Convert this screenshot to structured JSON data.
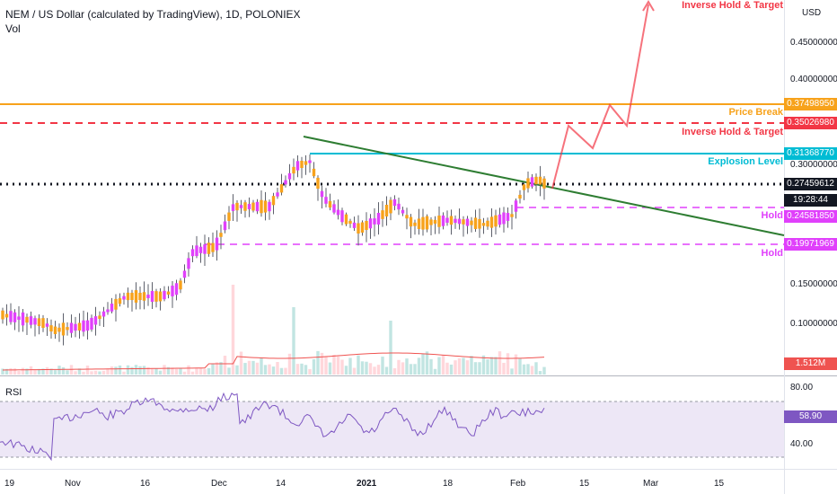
{
  "header": {
    "title": "NEM / US Dollar (calculated by TradingView), 1D, POLONIEX",
    "volume_label": "Vol",
    "currency": "USD"
  },
  "annotations": {
    "inverse_hold_target_top": "Inverse Hold & Target",
    "price_break": "Price Break",
    "inverse_hold_target": "Inverse Hold & Target",
    "explosion_level": "Explosion Level",
    "hold_upper": "Hold",
    "hold_lower": "Hold"
  },
  "price_tags": {
    "price_break": {
      "value": "0.37498950",
      "color": "#f7a21b"
    },
    "inverse_hold": {
      "value": "0.35026980",
      "color": "#f23645"
    },
    "explosion": {
      "value": "0.31368770",
      "color": "#00bcd4"
    },
    "current": {
      "value": "0.27459612",
      "color": "#131722"
    },
    "countdown": {
      "value": "19:28:44",
      "color": "#131722"
    },
    "hold_upper": {
      "value": "0.24581850",
      "color": "#e040fb"
    },
    "hold_lower": {
      "value": "0.19971969",
      "color": "#e040fb"
    },
    "volume": {
      "value": "1.512M",
      "color": "#ef5350"
    }
  },
  "price_axis": [
    "0.45000000",
    "0.40000000",
    "0.30000000",
    "0.15000000",
    "0.10000000"
  ],
  "rsi": {
    "label": "RSI",
    "value": "58.90",
    "axis": [
      "80.00",
      "40.00"
    ],
    "color": "#7e57c2"
  },
  "date_axis": [
    "19",
    "Nov",
    "16",
    "Dec",
    "14",
    "2021",
    "18",
    "Feb",
    "15",
    "Mar",
    "15"
  ],
  "colors": {
    "up": "#f7a21b",
    "down": "#e040fb",
    "trend": "#2e7d32",
    "projection": "#f23645",
    "bg": "#ffffff"
  },
  "chart_data": {
    "type": "candlestick",
    "title": "NEM / US Dollar (calculated by TradingView), 1D, POLONIEX",
    "y_scale": "log",
    "ylim": [
      0.065,
      0.56
    ],
    "levels": {
      "price_break": 0.3749895,
      "inverse_hold_target": 0.3502698,
      "explosion_level": 0.3136877,
      "current": 0.27459612,
      "hold_upper": 0.2458185,
      "hold_lower": 0.19971969
    },
    "rsi_last": 58.9,
    "volume_last": "1.512M"
  }
}
